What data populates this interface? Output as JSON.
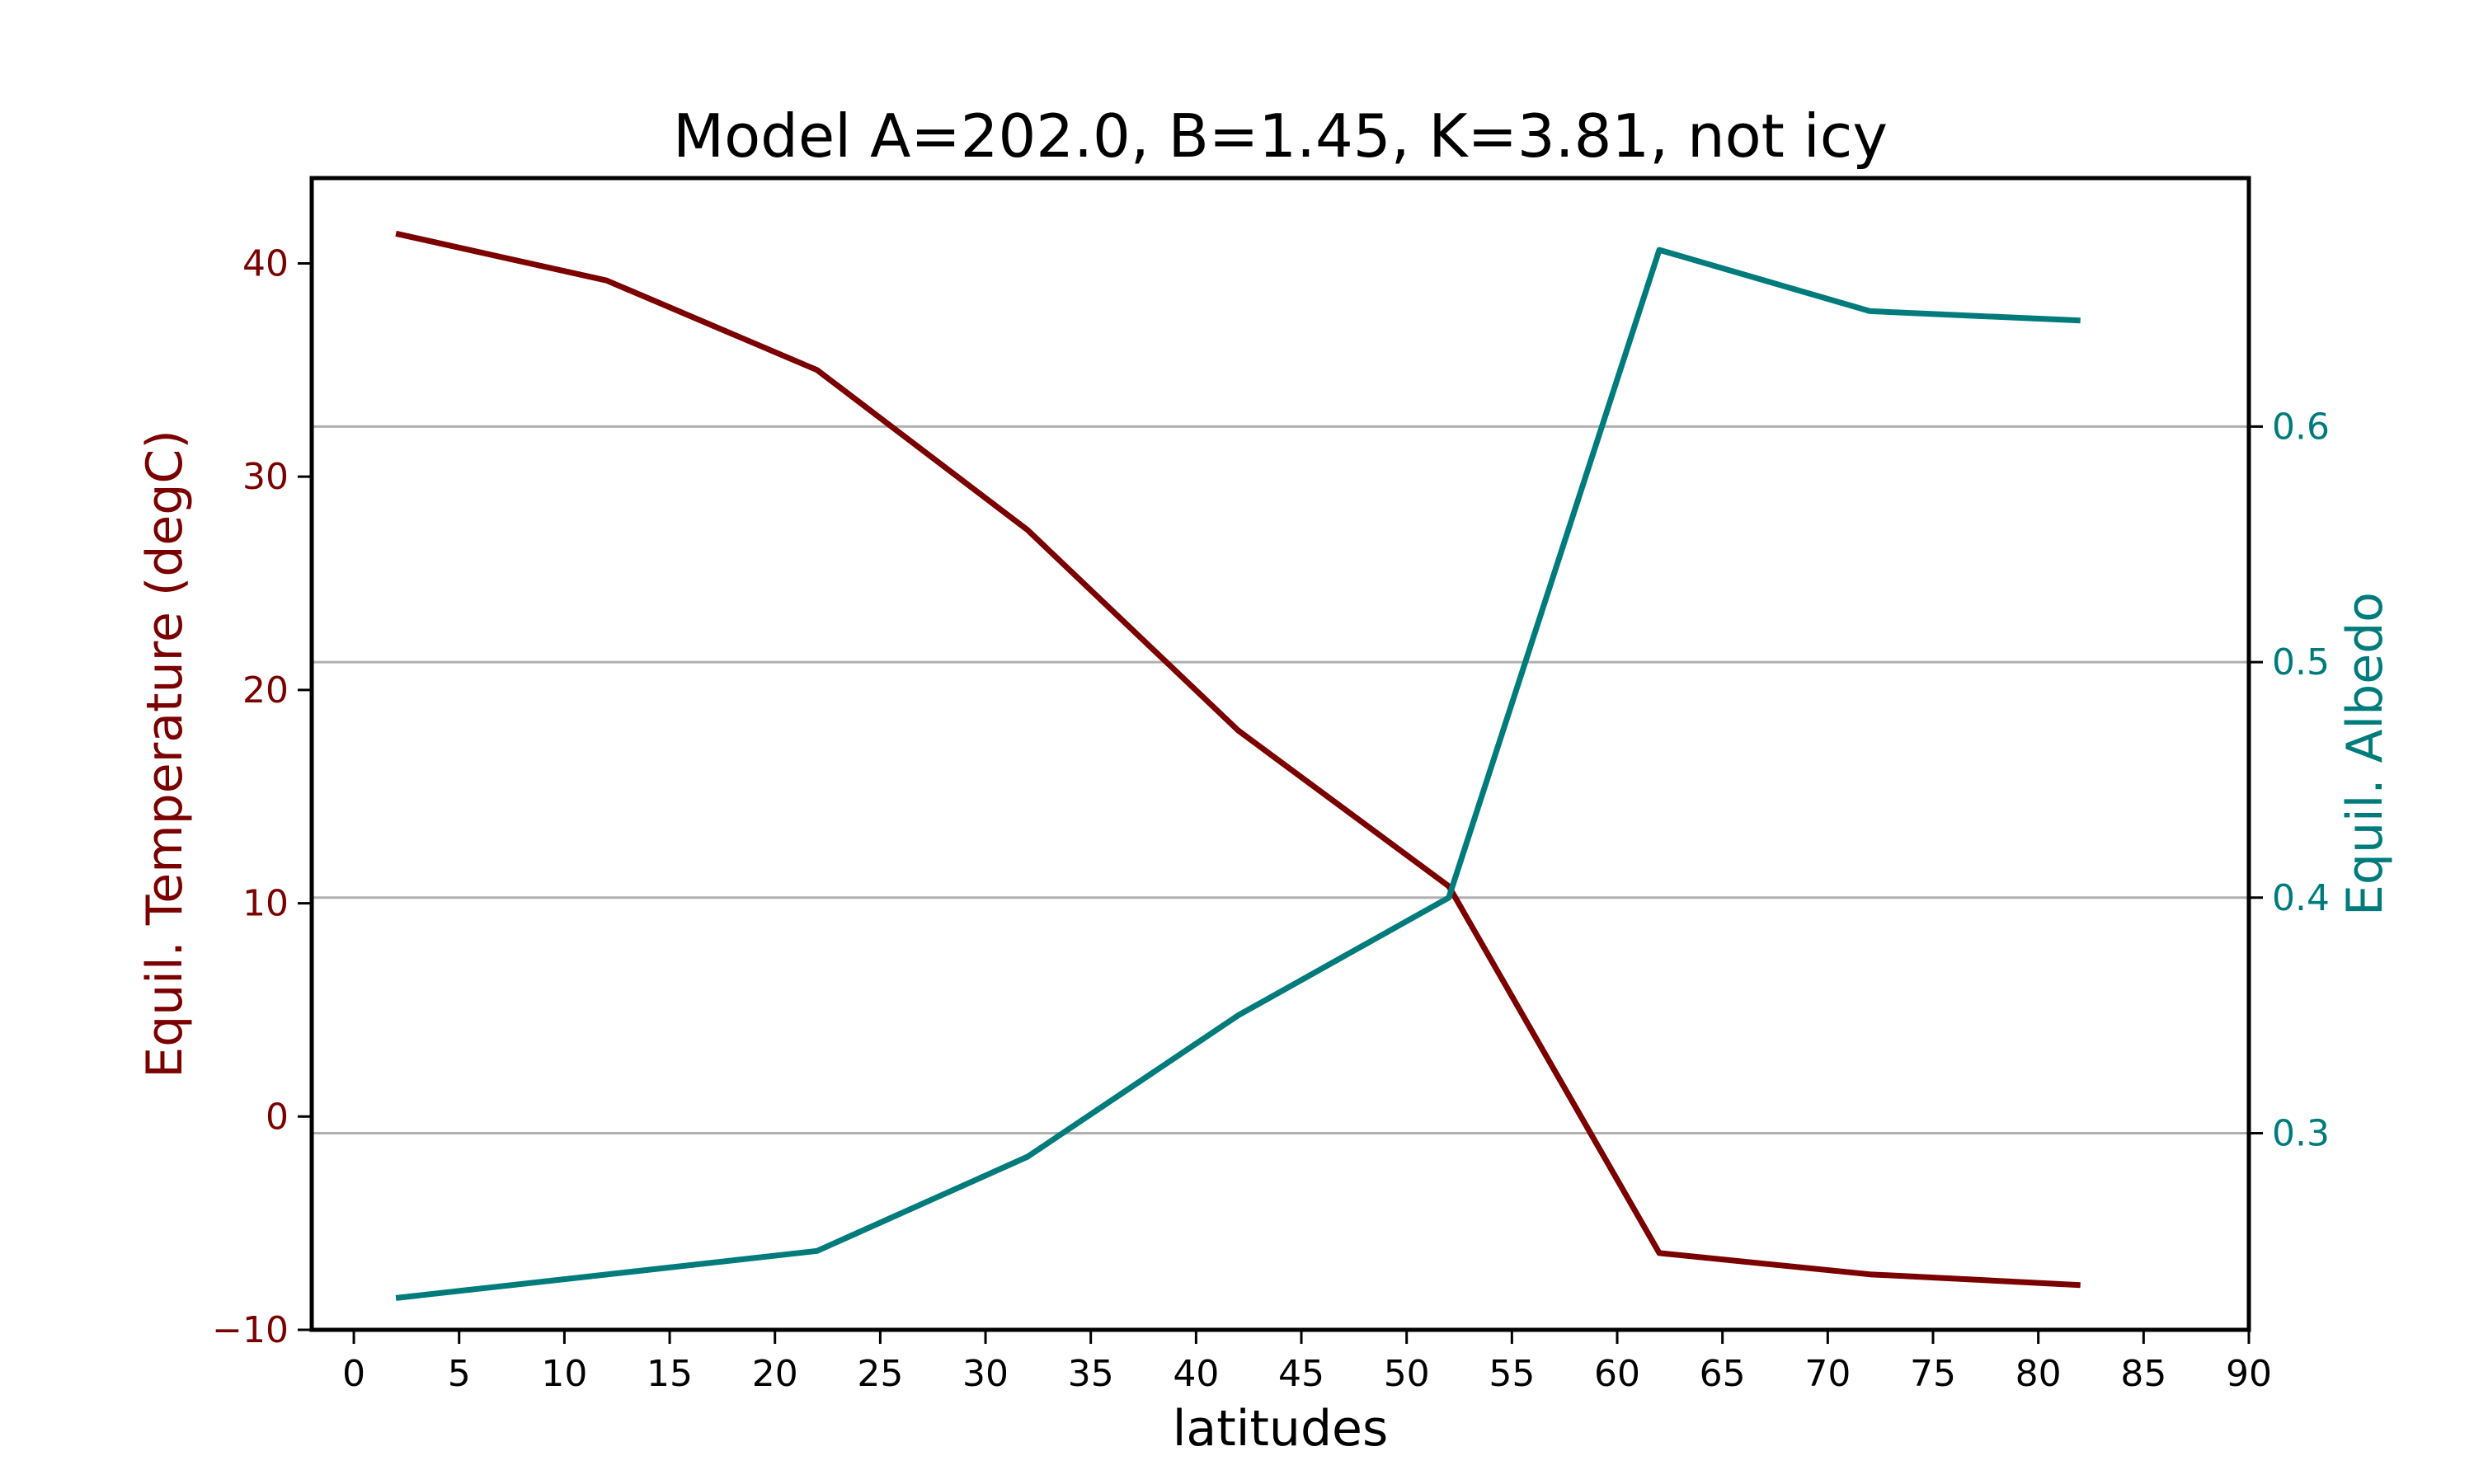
{
  "chart_data": {
    "type": "line",
    "title": "Model A=202.0, B=1.45, K=3.81, not icy",
    "xlabel": "latitudes",
    "ylabel": "Equil. Temperature (degC)",
    "y2label": "Equil. Albedo",
    "x": [
      2,
      12,
      22,
      32,
      42,
      52,
      62,
      72,
      82
    ],
    "xlim": [
      -2,
      90
    ],
    "ylim": [
      -10,
      44
    ],
    "y2lim": [
      0.2165,
      0.7055
    ],
    "xticks": [
      0,
      5,
      10,
      15,
      20,
      25,
      30,
      35,
      40,
      45,
      50,
      55,
      60,
      65,
      70,
      75,
      80,
      85,
      90
    ],
    "yticks": [
      -10,
      0,
      10,
      20,
      30,
      40
    ],
    "y2ticks": [
      0.3,
      0.4,
      0.5,
      0.6
    ],
    "grid": "horizontal, right axis",
    "colors": {
      "temperature": "#7b0000",
      "albedo": "#007b7b",
      "grid": "#b0b0b0",
      "axis": "#000000"
    },
    "series": [
      {
        "key": "temperature",
        "axis": "left",
        "color": "#7b0000",
        "values": [
          41.4,
          39.2,
          35.0,
          27.5,
          18.1,
          10.8,
          -6.4,
          -7.4,
          -7.9
        ]
      },
      {
        "key": "albedo",
        "axis": "right",
        "color": "#007b7b",
        "values": [
          0.23,
          0.24,
          0.25,
          0.29,
          0.35,
          0.4,
          0.675,
          0.649,
          0.645
        ]
      }
    ]
  }
}
